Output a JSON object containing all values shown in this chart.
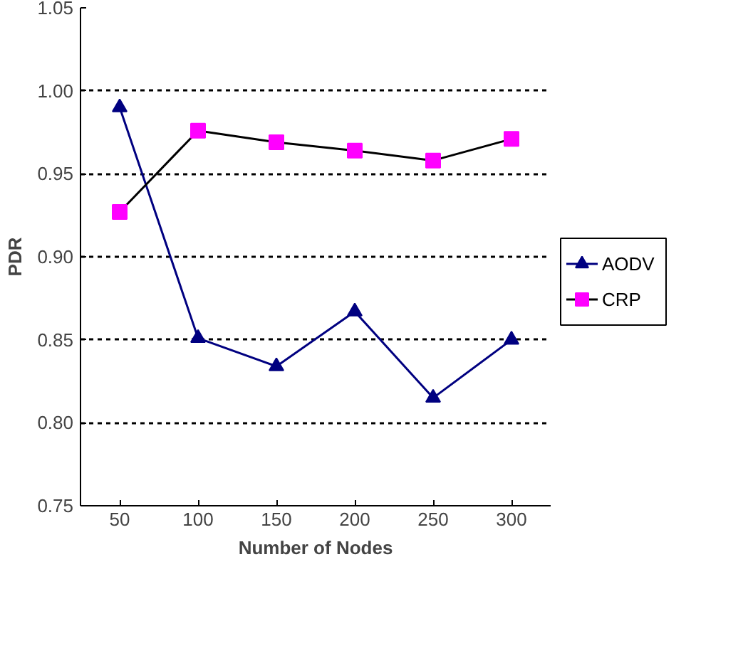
{
  "chart_data": {
    "type": "line",
    "xlabel": "Number of Nodes",
    "ylabel": "PDR",
    "categories": [
      "50",
      "100",
      "150",
      "200",
      "250",
      "300"
    ],
    "series": [
      {
        "name": "AODV",
        "color": "#000080",
        "marker": "triangle",
        "values": [
          0.99,
          0.851,
          0.834,
          0.867,
          0.815,
          0.85
        ]
      },
      {
        "name": "CRP",
        "color": "#000000",
        "marker": "square",
        "values": [
          0.927,
          0.976,
          0.969,
          0.964,
          0.958,
          0.971
        ]
      }
    ],
    "ylim": [
      0.75,
      1.05
    ],
    "yticks": [
      {
        "value": 0.75,
        "label": "0.75"
      },
      {
        "value": 0.8,
        "label": "0.80"
      },
      {
        "value": 0.85,
        "label": "0.85"
      },
      {
        "value": 0.9,
        "label": "0.90"
      },
      {
        "value": 0.95,
        "label": "0.95"
      },
      {
        "value": 1.0,
        "label": "1.00"
      },
      {
        "value": 1.05,
        "label": "1.05"
      }
    ],
    "grid": "y",
    "legend": "right"
  }
}
